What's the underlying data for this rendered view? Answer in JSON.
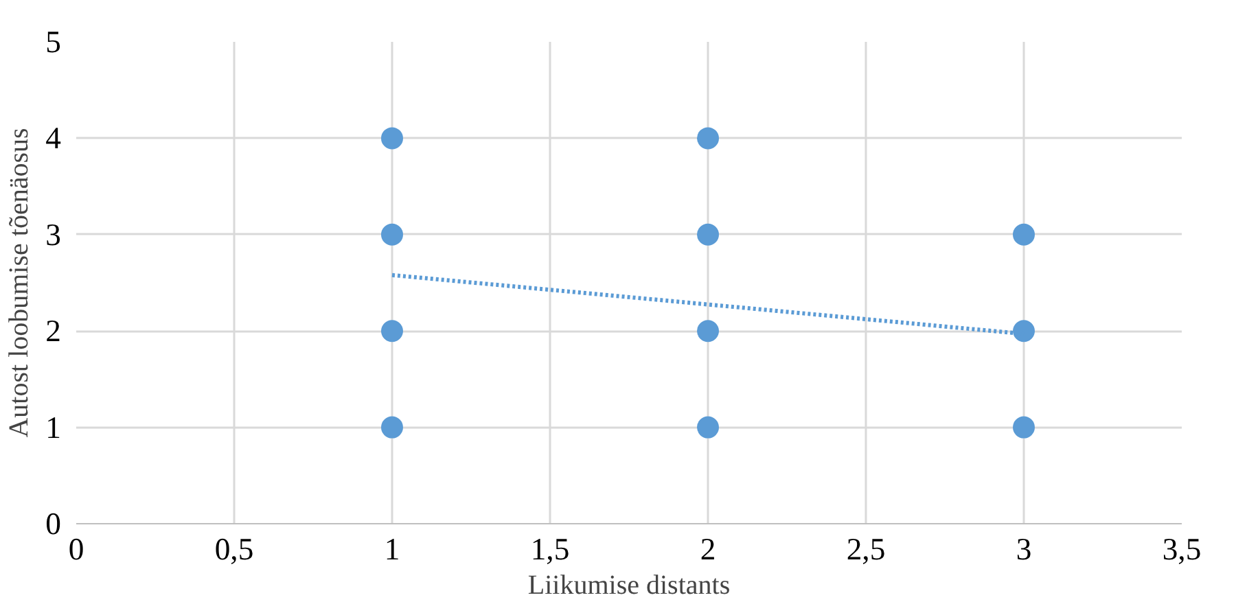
{
  "chart_data": {
    "type": "scatter",
    "xlabel": "Liikumise distants",
    "ylabel": "Autost loobumise tõenäosus",
    "series": [
      {
        "color": "#5b9bd5",
        "x": [
          1,
          1,
          1,
          1,
          2,
          2,
          2,
          2,
          3,
          3,
          3
        ],
        "values": [
          1,
          2,
          3,
          4,
          1,
          2,
          3,
          4,
          1,
          2,
          3
        ],
        "marker": "circle"
      },
      {
        "type": "line",
        "color": "#5b9bd5",
        "x": [
          1,
          3
        ],
        "values": [
          2.58,
          1.97
        ],
        "line_style": "dotted"
      }
    ],
    "xlim": [
      0,
      3.5
    ],
    "xticks": [
      0,
      {
        "value": 0.5,
        "label": "0,5"
      },
      1,
      {
        "value": 1.5,
        "label": "1,5"
      },
      2,
      {
        "value": 2.5,
        "label": "2,5"
      },
      3,
      {
        "value": 3.5,
        "label": "3,5"
      }
    ],
    "ylim": [
      0,
      5
    ],
    "yticks": [
      0,
      1,
      2,
      3,
      4,
      5
    ],
    "grid": true
  }
}
